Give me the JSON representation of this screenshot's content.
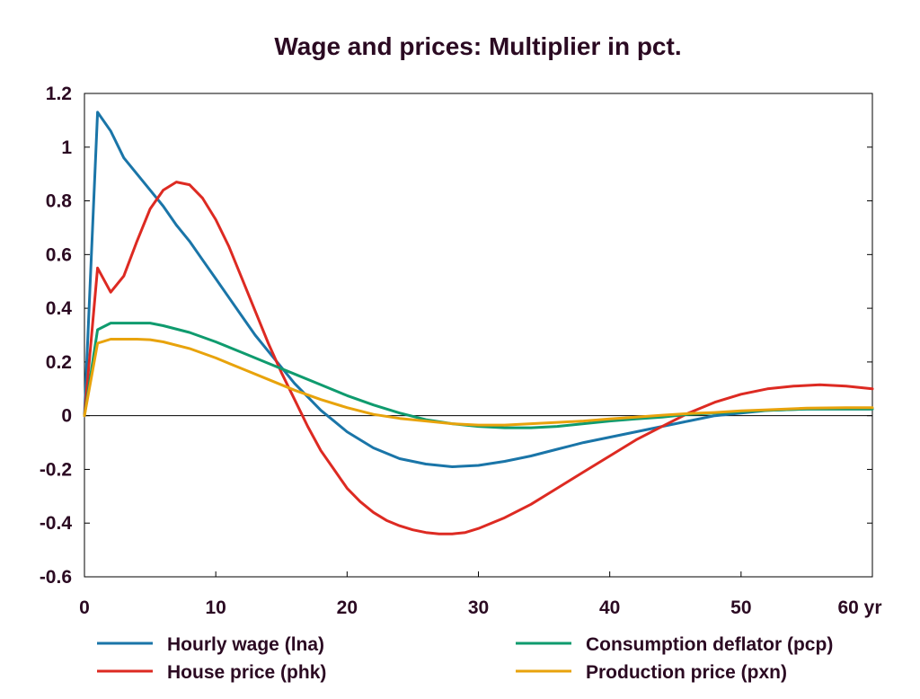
{
  "chart_data": {
    "type": "line",
    "title": "Wage and prices: Multiplier in pct.",
    "xlabel": "",
    "ylabel": "",
    "x_unit_label": "yr",
    "xlim": [
      0,
      60
    ],
    "ylim": [
      -0.6,
      1.2
    ],
    "x_ticks": [
      0,
      10,
      20,
      30,
      40,
      50,
      60
    ],
    "x_tick_labels": [
      "0",
      "10",
      "20",
      "30",
      "40",
      "50",
      "60 yr"
    ],
    "y_ticks": [
      -0.6,
      -0.4,
      -0.2,
      0,
      0.2,
      0.4,
      0.6,
      0.8,
      1,
      1.2
    ],
    "y_tick_labels": [
      "-0.6",
      "-0.4",
      "-0.2",
      "0",
      "0.2",
      "0.4",
      "0.6",
      "0.8",
      "1",
      "1.2"
    ],
    "grid": false,
    "zero_line": true,
    "legend_position": "bottom",
    "series": [
      {
        "name": "Hourly wage (lna)",
        "color": "#1a75a8",
        "x": [
          0,
          1,
          2,
          3,
          4,
          5,
          6,
          7,
          8,
          9,
          10,
          11,
          12,
          13,
          14,
          15,
          16,
          17,
          18,
          19,
          20,
          22,
          24,
          26,
          28,
          30,
          32,
          34,
          36,
          38,
          40,
          42,
          44,
          46,
          48,
          50,
          52,
          55,
          58,
          60
        ],
        "y": [
          0,
          1.13,
          1.06,
          0.96,
          0.9,
          0.84,
          0.78,
          0.71,
          0.65,
          0.58,
          0.51,
          0.44,
          0.37,
          0.3,
          0.24,
          0.18,
          0.12,
          0.07,
          0.02,
          -0.02,
          -0.06,
          -0.12,
          -0.16,
          -0.18,
          -0.19,
          -0.185,
          -0.17,
          -0.15,
          -0.125,
          -0.1,
          -0.08,
          -0.06,
          -0.04,
          -0.02,
          0,
          0.01,
          0.02,
          0.025,
          0.025,
          0.025
        ]
      },
      {
        "name": "House price (phk)",
        "color": "#dd2a22",
        "x": [
          0,
          1,
          2,
          3,
          4,
          5,
          6,
          7,
          8,
          9,
          10,
          11,
          12,
          13,
          14,
          15,
          16,
          17,
          18,
          19,
          20,
          21,
          22,
          23,
          24,
          25,
          26,
          27,
          28,
          29,
          30,
          32,
          34,
          36,
          38,
          40,
          42,
          44,
          46,
          48,
          50,
          52,
          54,
          56,
          58,
          60
        ],
        "y": [
          0,
          0.55,
          0.46,
          0.52,
          0.65,
          0.77,
          0.84,
          0.87,
          0.86,
          0.81,
          0.73,
          0.63,
          0.51,
          0.39,
          0.27,
          0.16,
          0.06,
          -0.04,
          -0.13,
          -0.2,
          -0.27,
          -0.32,
          -0.36,
          -0.39,
          -0.41,
          -0.425,
          -0.435,
          -0.44,
          -0.44,
          -0.435,
          -0.42,
          -0.38,
          -0.33,
          -0.27,
          -0.21,
          -0.15,
          -0.09,
          -0.04,
          0.01,
          0.05,
          0.08,
          0.1,
          0.11,
          0.115,
          0.11,
          0.1
        ]
      },
      {
        "name": "Consumption deflator (pcp)",
        "color": "#0f9b6e",
        "x": [
          0,
          1,
          2,
          3,
          4,
          5,
          6,
          8,
          10,
          12,
          14,
          16,
          18,
          20,
          22,
          24,
          26,
          28,
          30,
          32,
          34,
          36,
          38,
          40,
          42,
          44,
          46,
          48,
          50,
          52,
          55,
          58,
          60
        ],
        "y": [
          0,
          0.32,
          0.345,
          0.345,
          0.345,
          0.345,
          0.335,
          0.31,
          0.275,
          0.235,
          0.195,
          0.155,
          0.115,
          0.075,
          0.04,
          0.01,
          -0.015,
          -0.03,
          -0.04,
          -0.045,
          -0.045,
          -0.04,
          -0.03,
          -0.02,
          -0.012,
          -0.005,
          0.005,
          0.01,
          0.015,
          0.02,
          0.025,
          0.025,
          0.025
        ]
      },
      {
        "name": "Production price (pxn)",
        "color": "#e8a30c",
        "x": [
          0,
          1,
          2,
          3,
          4,
          5,
          6,
          8,
          10,
          12,
          14,
          16,
          18,
          20,
          22,
          24,
          26,
          28,
          30,
          32,
          34,
          36,
          38,
          40,
          42,
          44,
          46,
          48,
          50,
          52,
          55,
          58,
          60
        ],
        "y": [
          0,
          0.27,
          0.285,
          0.285,
          0.285,
          0.283,
          0.275,
          0.25,
          0.215,
          0.175,
          0.135,
          0.095,
          0.06,
          0.03,
          0.005,
          -0.01,
          -0.02,
          -0.03,
          -0.035,
          -0.035,
          -0.03,
          -0.025,
          -0.02,
          -0.012,
          -0.005,
          0.002,
          0.008,
          0.012,
          0.018,
          0.022,
          0.028,
          0.03,
          0.03
        ]
      }
    ]
  }
}
